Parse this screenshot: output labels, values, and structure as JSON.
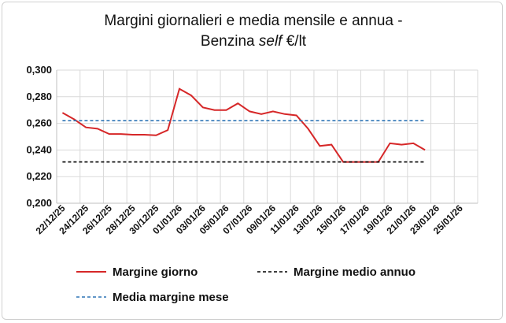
{
  "chart_data": {
    "type": "line",
    "title_line1": "Margini giornalieri e media mensile e annua -",
    "title_line2_prefix": "Benzina ",
    "title_line2_italic": "self",
    "title_line2_suffix": " €/lt",
    "ylim": [
      0.2,
      0.3
    ],
    "y_ticks": [
      "0,200",
      "0,220",
      "0,240",
      "0,260",
      "0,280",
      "0,300"
    ],
    "x_tick_labels": [
      "22/12/25",
      "24/12/25",
      "26/12/25",
      "28/12/25",
      "30/12/25",
      "01/01/26",
      "03/01/26",
      "05/01/26",
      "07/01/26",
      "09/01/26",
      "11/01/26",
      "13/01/26",
      "15/01/26",
      "17/01/26",
      "19/01/26",
      "21/01/26",
      "23/01/26",
      "25/01/26"
    ],
    "grid": true,
    "legend_placement": "bottom",
    "series": [
      {
        "name": "Margine giorno",
        "color": "#d62728",
        "style": "solid",
        "values": [
          0.268,
          0.263,
          0.257,
          0.256,
          0.252,
          0.252,
          0.2515,
          0.2515,
          0.251,
          0.255,
          0.286,
          0.281,
          0.272,
          0.27,
          0.27,
          0.275,
          0.269,
          0.267,
          0.269,
          0.267,
          0.266,
          0.256,
          0.243,
          0.244,
          0.231,
          0.231,
          0.231,
          0.231,
          0.245,
          0.244,
          0.245,
          0.24
        ]
      },
      {
        "name": "Margine medio annuo",
        "color": "#000000",
        "style": "dashed",
        "values": [
          0.231,
          0.231,
          0.231,
          0.231,
          0.231,
          0.231,
          0.231,
          0.231,
          0.231,
          0.231,
          0.231,
          0.231,
          0.231,
          0.231,
          0.231,
          0.231,
          0.231,
          0.231,
          0.231,
          0.231,
          0.231,
          0.231,
          0.231,
          0.231,
          0.231,
          0.231,
          0.231,
          0.231,
          0.231,
          0.231,
          0.231,
          0.231
        ]
      },
      {
        "name": "Media margine mese",
        "color": "#2e75b6",
        "style": "dashed",
        "values": [
          0.262,
          0.262,
          0.262,
          0.262,
          0.262,
          0.262,
          0.262,
          0.262,
          0.262,
          0.262,
          0.262,
          0.262,
          0.262,
          0.262,
          0.262,
          0.262,
          0.262,
          0.262,
          0.262,
          0.262,
          0.262,
          0.262,
          0.262,
          0.262,
          0.262,
          0.262,
          0.262,
          0.262,
          0.262,
          0.262,
          0.262,
          0.262
        ]
      }
    ]
  }
}
